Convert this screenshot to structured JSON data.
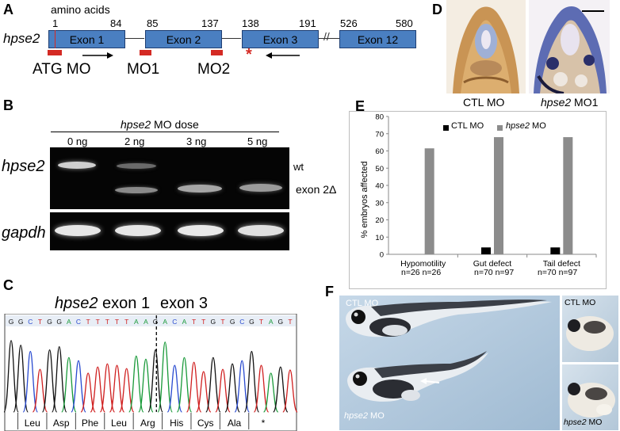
{
  "panels": {
    "a": {
      "label": "A",
      "amino_acids": "amino acids",
      "gene": "hpse2",
      "exon1": "Exon 1",
      "exon2": "Exon 2",
      "exon3": "Exon 3",
      "exon12": "Exon 12",
      "num_1": "1",
      "num_84": "84",
      "num_85": "85",
      "num_137": "137",
      "num_138": "138",
      "num_191": "191",
      "num_526": "526",
      "num_580": "580",
      "atg_mo": "ATG MO",
      "mo1": "MO1",
      "mo2": "MO2",
      "asterisk": "*",
      "colors": {
        "exon": "#4a7fc1",
        "morpholino": "#d42a24"
      }
    },
    "b": {
      "label": "B",
      "dose_title": "hpse2",
      "dose_title_rest": " MO dose",
      "doses": [
        "0 ng",
        "2 ng",
        "3 ng",
        "5 ng"
      ],
      "row1": "hpse2",
      "row2": "gapdh",
      "wt": "wt",
      "exon2": "exon 2Δ"
    },
    "c": {
      "label": "C",
      "title_gene": "hpse2",
      "title_exon1": " exon 1",
      "title_exon3": "exon 3",
      "bases": [
        "G",
        "G",
        "C",
        "T",
        "G",
        "G",
        "A",
        "C",
        "T",
        "T",
        "T",
        "T",
        "T",
        "A",
        "A",
        "G",
        "A",
        "C",
        "A",
        "T",
        "T",
        "G",
        "T",
        "G",
        "C",
        "G",
        "T",
        "A",
        "G",
        "T"
      ],
      "amino_acids": [
        "Leu",
        "Asp",
        "Phe",
        "Leu",
        "Arg",
        "His",
        "Cys",
        "Ala",
        "*"
      ],
      "base_colors": {
        "A": "#1a9a3a",
        "C": "#2a4bd0",
        "G": "#111111",
        "T": "#d02020"
      }
    },
    "d": {
      "label": "D",
      "ctl": "CTL MO",
      "morph": "hpse2",
      "morph_rest": " MO1"
    },
    "e": {
      "label": "E",
      "legend_ctl": "CTL MO",
      "legend_gene": "hpse2",
      "legend_morph_rest": " MO",
      "y_ticks": [
        "80",
        "70",
        "60",
        "50",
        "40",
        "30",
        "20",
        "10",
        "0"
      ],
      "n_labels": [
        "n=26  n=26",
        "n=70   n=97",
        "n=70   n=97"
      ]
    },
    "f": {
      "label": "F",
      "ctl_main": "CTL MO",
      "morph_main_gene": "hpse2",
      "morph_main_rest": " MO",
      "ctl_small": "CTL MO",
      "morph_small_gene": "hpse2",
      "morph_small_rest": " MO"
    }
  },
  "chart_data": {
    "type": "bar",
    "categories": [
      "Hypomotility",
      "Gut defect",
      "Tail defect"
    ],
    "series": [
      {
        "name": "CTL MO",
        "color": "#000000",
        "values": [
          0,
          4,
          4
        ]
      },
      {
        "name": "hpse2 MO",
        "color": "#8c8c8c",
        "values": [
          61.5,
          68,
          68
        ]
      }
    ],
    "ylabel": "% embryos affected",
    "ylim": [
      0,
      80
    ],
    "yticks": [
      0,
      10,
      20,
      30,
      40,
      50,
      60,
      70,
      80
    ],
    "legend": "top"
  }
}
